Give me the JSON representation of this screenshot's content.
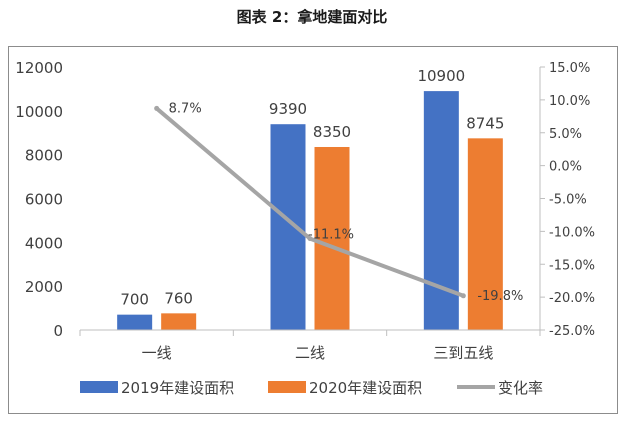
{
  "chart_data": {
    "type": "bar",
    "title": "图表 2：拿地建面对比",
    "categories": [
      "一线",
      "二线",
      "三到五线"
    ],
    "series": [
      {
        "name": "2019年建设面积",
        "values": [
          700,
          9390,
          10900
        ],
        "color": "#4472C4",
        "data_labels": [
          "700",
          "9390",
          "10900"
        ]
      },
      {
        "name": "2020年建设面积",
        "values": [
          760,
          8350,
          8745
        ],
        "color": "#ED7D31",
        "data_labels": [
          "760",
          "8350",
          "8745"
        ]
      }
    ],
    "line_series": {
      "name": "变化率",
      "axis": "right",
      "values": [
        8.7,
        -11.1,
        -19.8
      ],
      "data_labels": [
        "8.7%",
        "-11.1%",
        "-19.8%"
      ],
      "color": "#A5A5A5"
    },
    "y_left": {
      "min": 0,
      "max": 12000,
      "ticks": [
        "0",
        "2000",
        "4000",
        "6000",
        "8000",
        "10000",
        "12000"
      ]
    },
    "y_right": {
      "min": -25,
      "max": 15,
      "ticks": [
        "-25.0%",
        "-20.0%",
        "-15.0%",
        "-10.0%",
        "-5.0%",
        "0.0%",
        "5.0%",
        "10.0%",
        "15.0%"
      ]
    },
    "xlabel": "",
    "ylabel": "",
    "grid": false,
    "legend_position": "bottom"
  }
}
